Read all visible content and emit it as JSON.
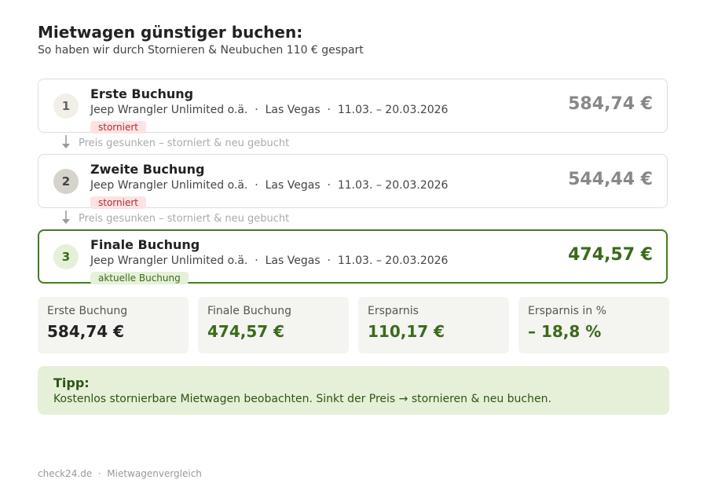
{
  "header": {
    "title": "Mietwagen günstiger buchen:",
    "subtitle": "So haben wir durch Stornieren & Neubuchen 110 € gespart"
  },
  "bookings": [
    {
      "number": "1",
      "title": "Erste Buchung",
      "details": "Jeep Wrangler Unlimited o.ä.  ·  Las Vegas  ·  11.03. – 20.03.2026",
      "price": "584,74 €",
      "badge": "storniert"
    },
    {
      "number": "2",
      "title": "Zweite Buchung",
      "details": "Jeep Wrangler Unlimited o.ä.  ·  Las Vegas  ·  11.03. – 20.03.2026",
      "price": "544,44 €",
      "badge": "storniert"
    },
    {
      "number": "3",
      "title": "Finale Buchung",
      "details": "Jeep Wrangler Unlimited o.ä.  ·  Las Vegas  ·  11.03. – 20.03.2026",
      "price": "474,57 €",
      "badge": "aktuelle Buchung"
    }
  ],
  "connectors": [
    "Preis gesunken – storniert & neu gebucht",
    "Preis gesunken – storniert & neu gebucht"
  ],
  "stats": [
    {
      "label": "Erste Buchung",
      "value": "584,74 €"
    },
    {
      "label": "Finale Buchung",
      "value": "474,57 €"
    },
    {
      "label": "Ersparnis",
      "value": "110,17 €"
    },
    {
      "label": "Ersparnis in %",
      "value": "– 18,8 %"
    }
  ],
  "tip": {
    "title": "Tipp:",
    "text": "Kostenlos stornierbare Mietwagen beobachten. Sinkt der Preis → stornieren & neu buchen."
  },
  "footer": {
    "text": "check24.de  ·  Mietwagenvergleich"
  }
}
